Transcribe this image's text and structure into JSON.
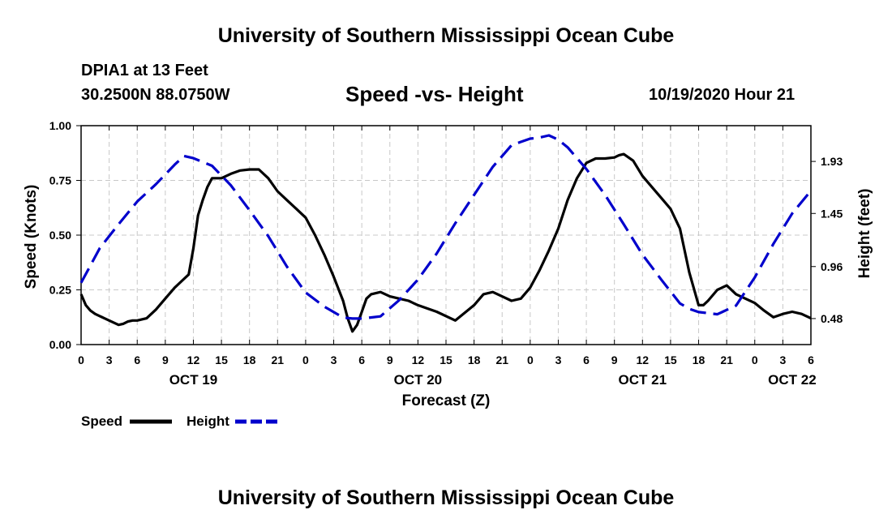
{
  "header": {
    "org_title": "University of Southern Mississippi Ocean Cube",
    "station": "DPIA1 at 13 Feet",
    "coords": "30.2500N 88.0750W",
    "datetime": "10/19/2020 Hour 21"
  },
  "footer": {
    "org_title": "University of Southern Mississippi Ocean Cube"
  },
  "colors": {
    "speed": "#000000",
    "height": "#0000cc",
    "grid": "#c8c8c8"
  },
  "chart_data": {
    "type": "line",
    "title": "Speed -vs- Height",
    "xlabel": "Forecast (Z)",
    "ylabel_left": "Speed (Knots)",
    "ylabel_right": "Height (feet)",
    "x_unit": "hours from Oct 19 00Z",
    "xlim": [
      0,
      78
    ],
    "ylim_left": [
      0,
      1
    ],
    "ylim_right": [
      0.24,
      2.26
    ],
    "x_ticks": [
      0,
      3,
      6,
      9,
      12,
      15,
      18,
      21,
      24,
      27,
      30,
      33,
      36,
      39,
      42,
      45,
      48,
      51,
      54,
      57,
      60,
      63,
      66,
      69,
      72,
      75,
      78
    ],
    "x_tick_labels": [
      "0",
      "3",
      "6",
      "9",
      "12",
      "15",
      "18",
      "21",
      "0",
      "3",
      "6",
      "9",
      "12",
      "15",
      "18",
      "21",
      "0",
      "3",
      "6",
      "9",
      "12",
      "15",
      "18",
      "21",
      "0",
      "3",
      "6"
    ],
    "y_ticks_left": [
      0,
      0.25,
      0.5,
      0.75,
      1
    ],
    "y_tick_labels_left": [
      "0.00",
      "0.25",
      "0.50",
      "0.75",
      "1.00"
    ],
    "y_ticks_right": [
      0.48,
      0.96,
      1.45,
      1.93
    ],
    "y_tick_labels_right": [
      "0.48",
      "0.96",
      "1.45",
      "1.93"
    ],
    "day_labels": [
      {
        "x": 12,
        "label": "OCT 19"
      },
      {
        "x": 36,
        "label": "OCT 20"
      },
      {
        "x": 60,
        "label": "OCT 21"
      },
      {
        "x": 76,
        "label": "OCT 22"
      }
    ],
    "legend": [
      {
        "name": "Speed",
        "style": "solid"
      },
      {
        "name": "Height",
        "style": "dashed"
      }
    ],
    "series": [
      {
        "name": "Speed",
        "axis": "left",
        "style": "solid",
        "x": [
          0,
          0.5,
          1,
          1.5,
          2,
          3,
          4,
          4.5,
          5,
          5.5,
          6,
          7,
          8,
          9,
          10,
          11,
          11.5,
          12,
          12.5,
          13,
          13.5,
          14,
          15,
          16,
          17,
          18,
          19,
          20,
          21,
          22,
          23,
          24,
          25,
          26,
          27,
          28,
          28.5,
          29,
          29.5,
          30,
          30.5,
          31,
          32,
          33,
          34,
          35,
          36,
          38,
          40,
          42,
          43,
          44,
          45,
          46,
          47,
          48,
          49,
          50,
          51,
          52,
          53,
          54,
          55,
          56,
          57,
          57.5,
          58,
          59,
          60,
          61,
          62,
          63,
          64,
          65,
          66,
          66.5,
          67,
          68,
          69,
          70,
          71,
          72,
          73,
          74,
          75,
          76,
          77,
          78
        ],
        "values": [
          0.23,
          0.18,
          0.155,
          0.14,
          0.13,
          0.11,
          0.09,
          0.095,
          0.105,
          0.11,
          0.11,
          0.12,
          0.16,
          0.21,
          0.26,
          0.3,
          0.32,
          0.44,
          0.59,
          0.66,
          0.72,
          0.76,
          0.76,
          0.78,
          0.795,
          0.8,
          0.8,
          0.76,
          0.7,
          0.66,
          0.62,
          0.58,
          0.5,
          0.41,
          0.31,
          0.2,
          0.12,
          0.06,
          0.09,
          0.15,
          0.21,
          0.23,
          0.24,
          0.22,
          0.21,
          0.2,
          0.18,
          0.15,
          0.11,
          0.18,
          0.23,
          0.24,
          0.22,
          0.2,
          0.21,
          0.26,
          0.34,
          0.43,
          0.53,
          0.66,
          0.76,
          0.83,
          0.85,
          0.85,
          0.855,
          0.865,
          0.87,
          0.84,
          0.77,
          0.72,
          0.67,
          0.62,
          0.53,
          0.33,
          0.18,
          0.18,
          0.2,
          0.25,
          0.27,
          0.23,
          0.21,
          0.19,
          0.155,
          0.125,
          0.14,
          0.15,
          0.14,
          0.12
        ]
      },
      {
        "name": "Height",
        "axis": "right",
        "style": "dashed",
        "x": [
          0,
          2,
          4,
          6,
          8,
          10,
          11,
          12,
          14,
          16,
          18,
          20,
          22,
          24,
          26,
          28,
          29,
          30,
          32,
          34,
          36,
          38,
          40,
          42,
          44,
          46,
          47,
          48,
          49,
          50,
          51,
          52,
          54,
          56,
          58,
          60,
          62,
          64,
          65,
          66,
          68,
          70,
          72,
          74,
          76,
          78
        ],
        "values": [
          0.81,
          1.13,
          1.35,
          1.56,
          1.72,
          1.9,
          1.98,
          1.96,
          1.89,
          1.71,
          1.48,
          1.24,
          0.96,
          0.72,
          0.59,
          0.49,
          0.48,
          0.48,
          0.5,
          0.65,
          0.84,
          1.08,
          1.36,
          1.62,
          1.88,
          2.08,
          2.11,
          2.14,
          2.15,
          2.17,
          2.13,
          2.06,
          1.86,
          1.62,
          1.35,
          1.07,
          0.84,
          0.62,
          0.57,
          0.54,
          0.52,
          0.6,
          0.86,
          1.17,
          1.45,
          1.66
        ]
      }
    ]
  }
}
